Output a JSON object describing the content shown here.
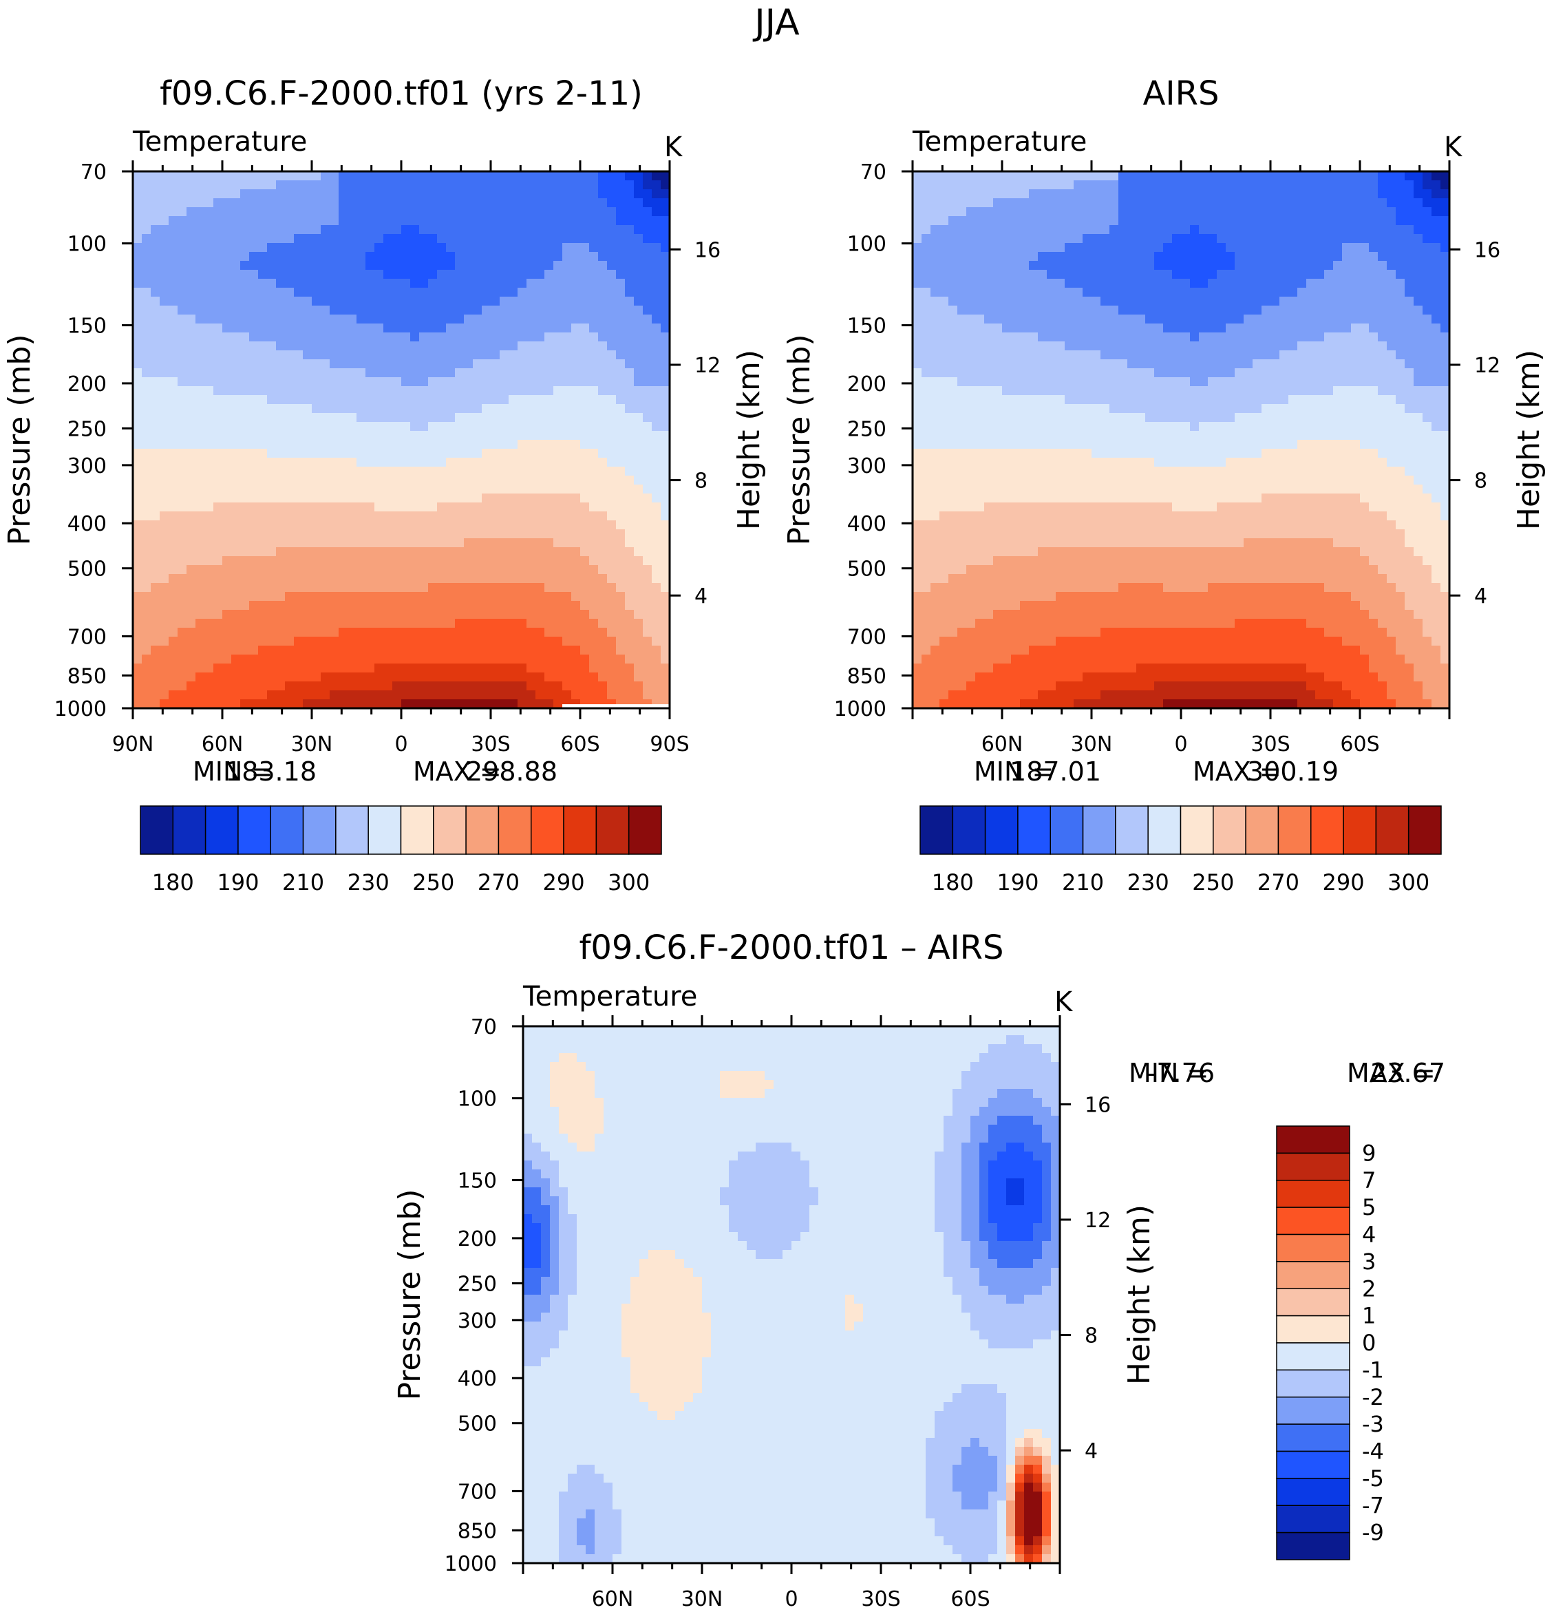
{
  "figure": {
    "title": "JJA"
  },
  "chart_data": [
    {
      "type": "contour",
      "panel": "model",
      "title": "f09.C6.F-2000.tf01 (yrs 2-11)",
      "variable": "Temperature",
      "units": "K",
      "ylabel": "Pressure (mb)",
      "ylabel_right": "Height (km)",
      "pressure_ticks": [
        70,
        100,
        150,
        200,
        250,
        300,
        400,
        500,
        700,
        850,
        1000
      ],
      "height_ticks": [
        4,
        8,
        12,
        16
      ],
      "x_ticks": [
        "90N",
        "60N",
        "30N",
        "0",
        "30S",
        "60S",
        "90S"
      ],
      "x_range": [
        90,
        -90
      ],
      "stats": {
        "min_label": "MIN =",
        "min": "183.18",
        "max_label": "MAX =",
        "max": "298.88"
      },
      "levels": [
        180,
        185,
        190,
        200,
        210,
        220,
        230,
        240,
        250,
        260,
        270,
        280,
        290,
        295,
        300
      ],
      "colorbar_labels": [
        "180",
        "190",
        "210",
        "230",
        "250",
        "270",
        "290",
        "300"
      ]
    },
    {
      "type": "contour",
      "panel": "obs",
      "title": "AIRS",
      "variable": "Temperature",
      "units": "K",
      "ylabel": "Pressure (mb)",
      "ylabel_right": "Height (km)",
      "pressure_ticks": [
        70,
        100,
        150,
        200,
        250,
        300,
        400,
        500,
        700,
        850,
        1000
      ],
      "height_ticks": [
        4,
        8,
        12,
        16
      ],
      "x_ticks": [
        "60N",
        "30N",
        "0",
        "30S",
        "60S"
      ],
      "x_range": [
        90,
        -90
      ],
      "stats": {
        "min_label": "MIN =",
        "min": "187.01",
        "max_label": "MAX =",
        "max": "300.19"
      },
      "levels": [
        180,
        185,
        190,
        200,
        210,
        220,
        230,
        240,
        250,
        260,
        270,
        280,
        290,
        295,
        300
      ],
      "colorbar_labels": [
        "180",
        "190",
        "210",
        "230",
        "250",
        "270",
        "290",
        "300"
      ]
    },
    {
      "type": "contour",
      "panel": "diff",
      "title": "f09.C6.F-2000.tf01 – AIRS",
      "variable": "Temperature",
      "units": "K",
      "ylabel": "Pressure (mb)",
      "ylabel_right": "Height (km)",
      "pressure_ticks": [
        70,
        100,
        150,
        200,
        250,
        300,
        400,
        500,
        700,
        850,
        1000
      ],
      "height_ticks": [
        4,
        8,
        12,
        16
      ],
      "x_ticks": [
        "60N",
        "30N",
        "0",
        "30S",
        "60S"
      ],
      "x_range": [
        90,
        -90
      ],
      "stats": {
        "min_label": "MIN =",
        "min": "-7.76",
        "max_label": "MAX =",
        "max": "23.67"
      },
      "levels": [
        -9,
        -7,
        -5,
        -4,
        -3,
        -2,
        -1,
        0,
        1,
        2,
        3,
        4,
        5,
        7,
        9
      ],
      "colorbar_labels": [
        "9",
        "7",
        "5",
        "4",
        "3",
        "2",
        "1",
        "0",
        "-1",
        "-2",
        "-3",
        "-4",
        "-5",
        "-7",
        "-9"
      ]
    }
  ],
  "colormap": {
    "temperature": [
      "#0a1a8f",
      "#0c2cbf",
      "#0a3ae6",
      "#1f55ff",
      "#3f70f5",
      "#7d9ff8",
      "#b2c7fb",
      "#d8e8fb",
      "#fde6d2",
      "#f9c3aa",
      "#f7a27c",
      "#f97c4c",
      "#fc5423",
      "#e2380e",
      "#bf2810",
      "#8c0c0c"
    ],
    "difference": [
      "#0a1a8f",
      "#0c2cbf",
      "#0a3ae6",
      "#1f55ff",
      "#3f70f5",
      "#7d9ff8",
      "#b2c7fb",
      "#d8e8fb",
      "#fde6d2",
      "#f9c3aa",
      "#f7a27c",
      "#f97c4c",
      "#fc5423",
      "#e2380e",
      "#bf2810",
      "#8c0c0c"
    ]
  }
}
